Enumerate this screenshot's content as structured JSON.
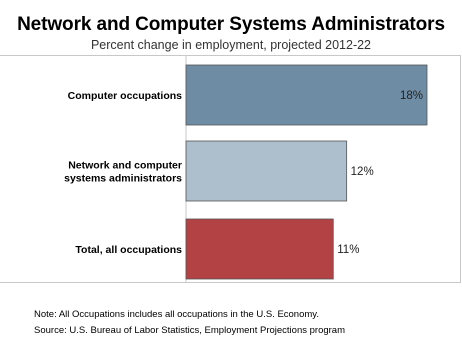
{
  "header": {
    "title": "Network and Computer Systems Administrators",
    "subtitle": "Percent change in employment, projected 2012-22"
  },
  "footnotes": {
    "note": "Note: All Occupations includes all occupations in the U.S. Economy.",
    "source": "Source: U.S. Bureau of Labor Statistics, Employment Projections program"
  },
  "chart_data": {
    "type": "bar",
    "orientation": "horizontal",
    "title": "Network and Computer Systems Administrators",
    "subtitle": "Percent change in employment, projected 2012-22",
    "xlabel": "",
    "ylabel": "",
    "categories": [
      [
        "Computer occupations"
      ],
      [
        "Network and computer",
        "systems administrators"
      ],
      [
        "Total, all occupations"
      ]
    ],
    "values": [
      18,
      12,
      11
    ],
    "value_labels": [
      "18%",
      "12%",
      "11%"
    ],
    "colors": [
      "#6e8ca4",
      "#adbfcc",
      "#b34244"
    ],
    "xlim": [
      0,
      18
    ],
    "grid": false,
    "legend": "none"
  }
}
